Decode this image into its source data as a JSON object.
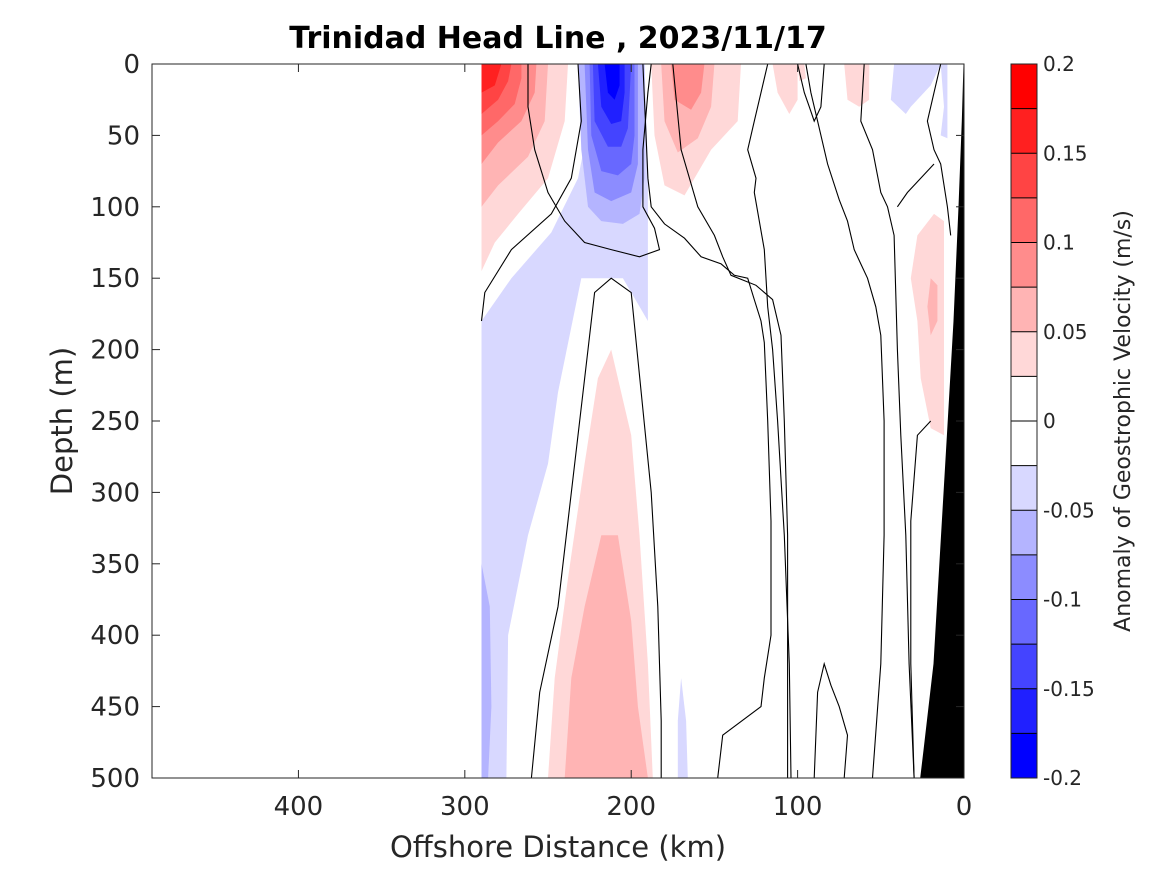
{
  "chart_data": {
    "type": "heatmap",
    "title": "Trinidad Head Line , 2023/11/17",
    "xlabel": "Offshore Distance (km)",
    "ylabel": "Depth (m)",
    "xlim": [
      488,
      0
    ],
    "ylim": [
      0,
      500
    ],
    "x_reversed": true,
    "y_reversed": true,
    "x_ticks": [
      400,
      300,
      200,
      100,
      0
    ],
    "x_tick_labels": [
      "400",
      "300",
      "200",
      "100",
      "0"
    ],
    "y_ticks": [
      0,
      50,
      100,
      150,
      200,
      250,
      300,
      350,
      400,
      450,
      500
    ],
    "y_tick_labels": [
      "0",
      "50",
      "100",
      "150",
      "200",
      "250",
      "300",
      "350",
      "400",
      "450",
      "500"
    ],
    "colorbar": {
      "label": "Anomaly of Geostrophic Velocity (m/s)",
      "range": [
        -0.2,
        0.2
      ],
      "ticks": [
        0.2,
        0.15,
        0.1,
        0.05,
        0,
        -0.05,
        -0.1,
        -0.15,
        -0.2
      ],
      "tick_labels": [
        "0.2",
        "0.15",
        "0.1",
        "0.05",
        "0",
        "-0.05",
        "-0.1",
        "-0.15",
        "-0.2"
      ],
      "levels": [
        {
          "from": 0.175,
          "to": 0.2,
          "color": "#ff0000"
        },
        {
          "from": 0.15,
          "to": 0.175,
          "color": "#ff2020"
        },
        {
          "from": 0.125,
          "to": 0.15,
          "color": "#ff4444"
        },
        {
          "from": 0.1,
          "to": 0.125,
          "color": "#ff6868"
        },
        {
          "from": 0.075,
          "to": 0.1,
          "color": "#ff8c8c"
        },
        {
          "from": 0.05,
          "to": 0.075,
          "color": "#ffb4b4"
        },
        {
          "from": 0.025,
          "to": 0.05,
          "color": "#ffd8d8"
        },
        {
          "from": 0,
          "to": 0.025,
          "color": "#ffffff"
        },
        {
          "from": -0.025,
          "to": 0,
          "color": "#ffffff"
        },
        {
          "from": -0.05,
          "to": -0.025,
          "color": "#d8d8ff"
        },
        {
          "from": -0.075,
          "to": -0.05,
          "color": "#b4b4ff"
        },
        {
          "from": -0.1,
          "to": -0.075,
          "color": "#8c8cff"
        },
        {
          "from": -0.125,
          "to": -0.1,
          "color": "#6868ff"
        },
        {
          "from": -0.15,
          "to": -0.125,
          "color": "#4444ff"
        },
        {
          "from": -0.175,
          "to": -0.15,
          "color": "#2020ff"
        },
        {
          "from": -0.2,
          "to": -0.175,
          "color": "#0000ff"
        }
      ]
    },
    "data_extent_x": [
      290,
      0
    ],
    "seafloor_color": "#000000",
    "zero_contour_color": "#000000",
    "features": [
      {
        "name": "surface-positive-core",
        "value": 0.175,
        "x_center": 270,
        "depth_range": [
          0,
          145
        ]
      },
      {
        "name": "surface-negative-core",
        "value": -0.2,
        "x_center": 212,
        "depth_range": [
          0,
          130
        ]
      },
      {
        "name": "surface-positive-lobe",
        "value": 0.1,
        "x_center": 170,
        "depth_range": [
          0,
          90
        ]
      },
      {
        "name": "deep-negative-band",
        "value": -0.05,
        "x_center": 260,
        "depth_range": [
          0,
          500
        ]
      },
      {
        "name": "deep-positive-core",
        "value": 0.075,
        "x_center": 212,
        "depth_range": [
          200,
          500
        ]
      },
      {
        "name": "nearshore-positive",
        "value": 0.05,
        "x_center": 20,
        "depth_range": [
          105,
          260
        ]
      }
    ]
  }
}
